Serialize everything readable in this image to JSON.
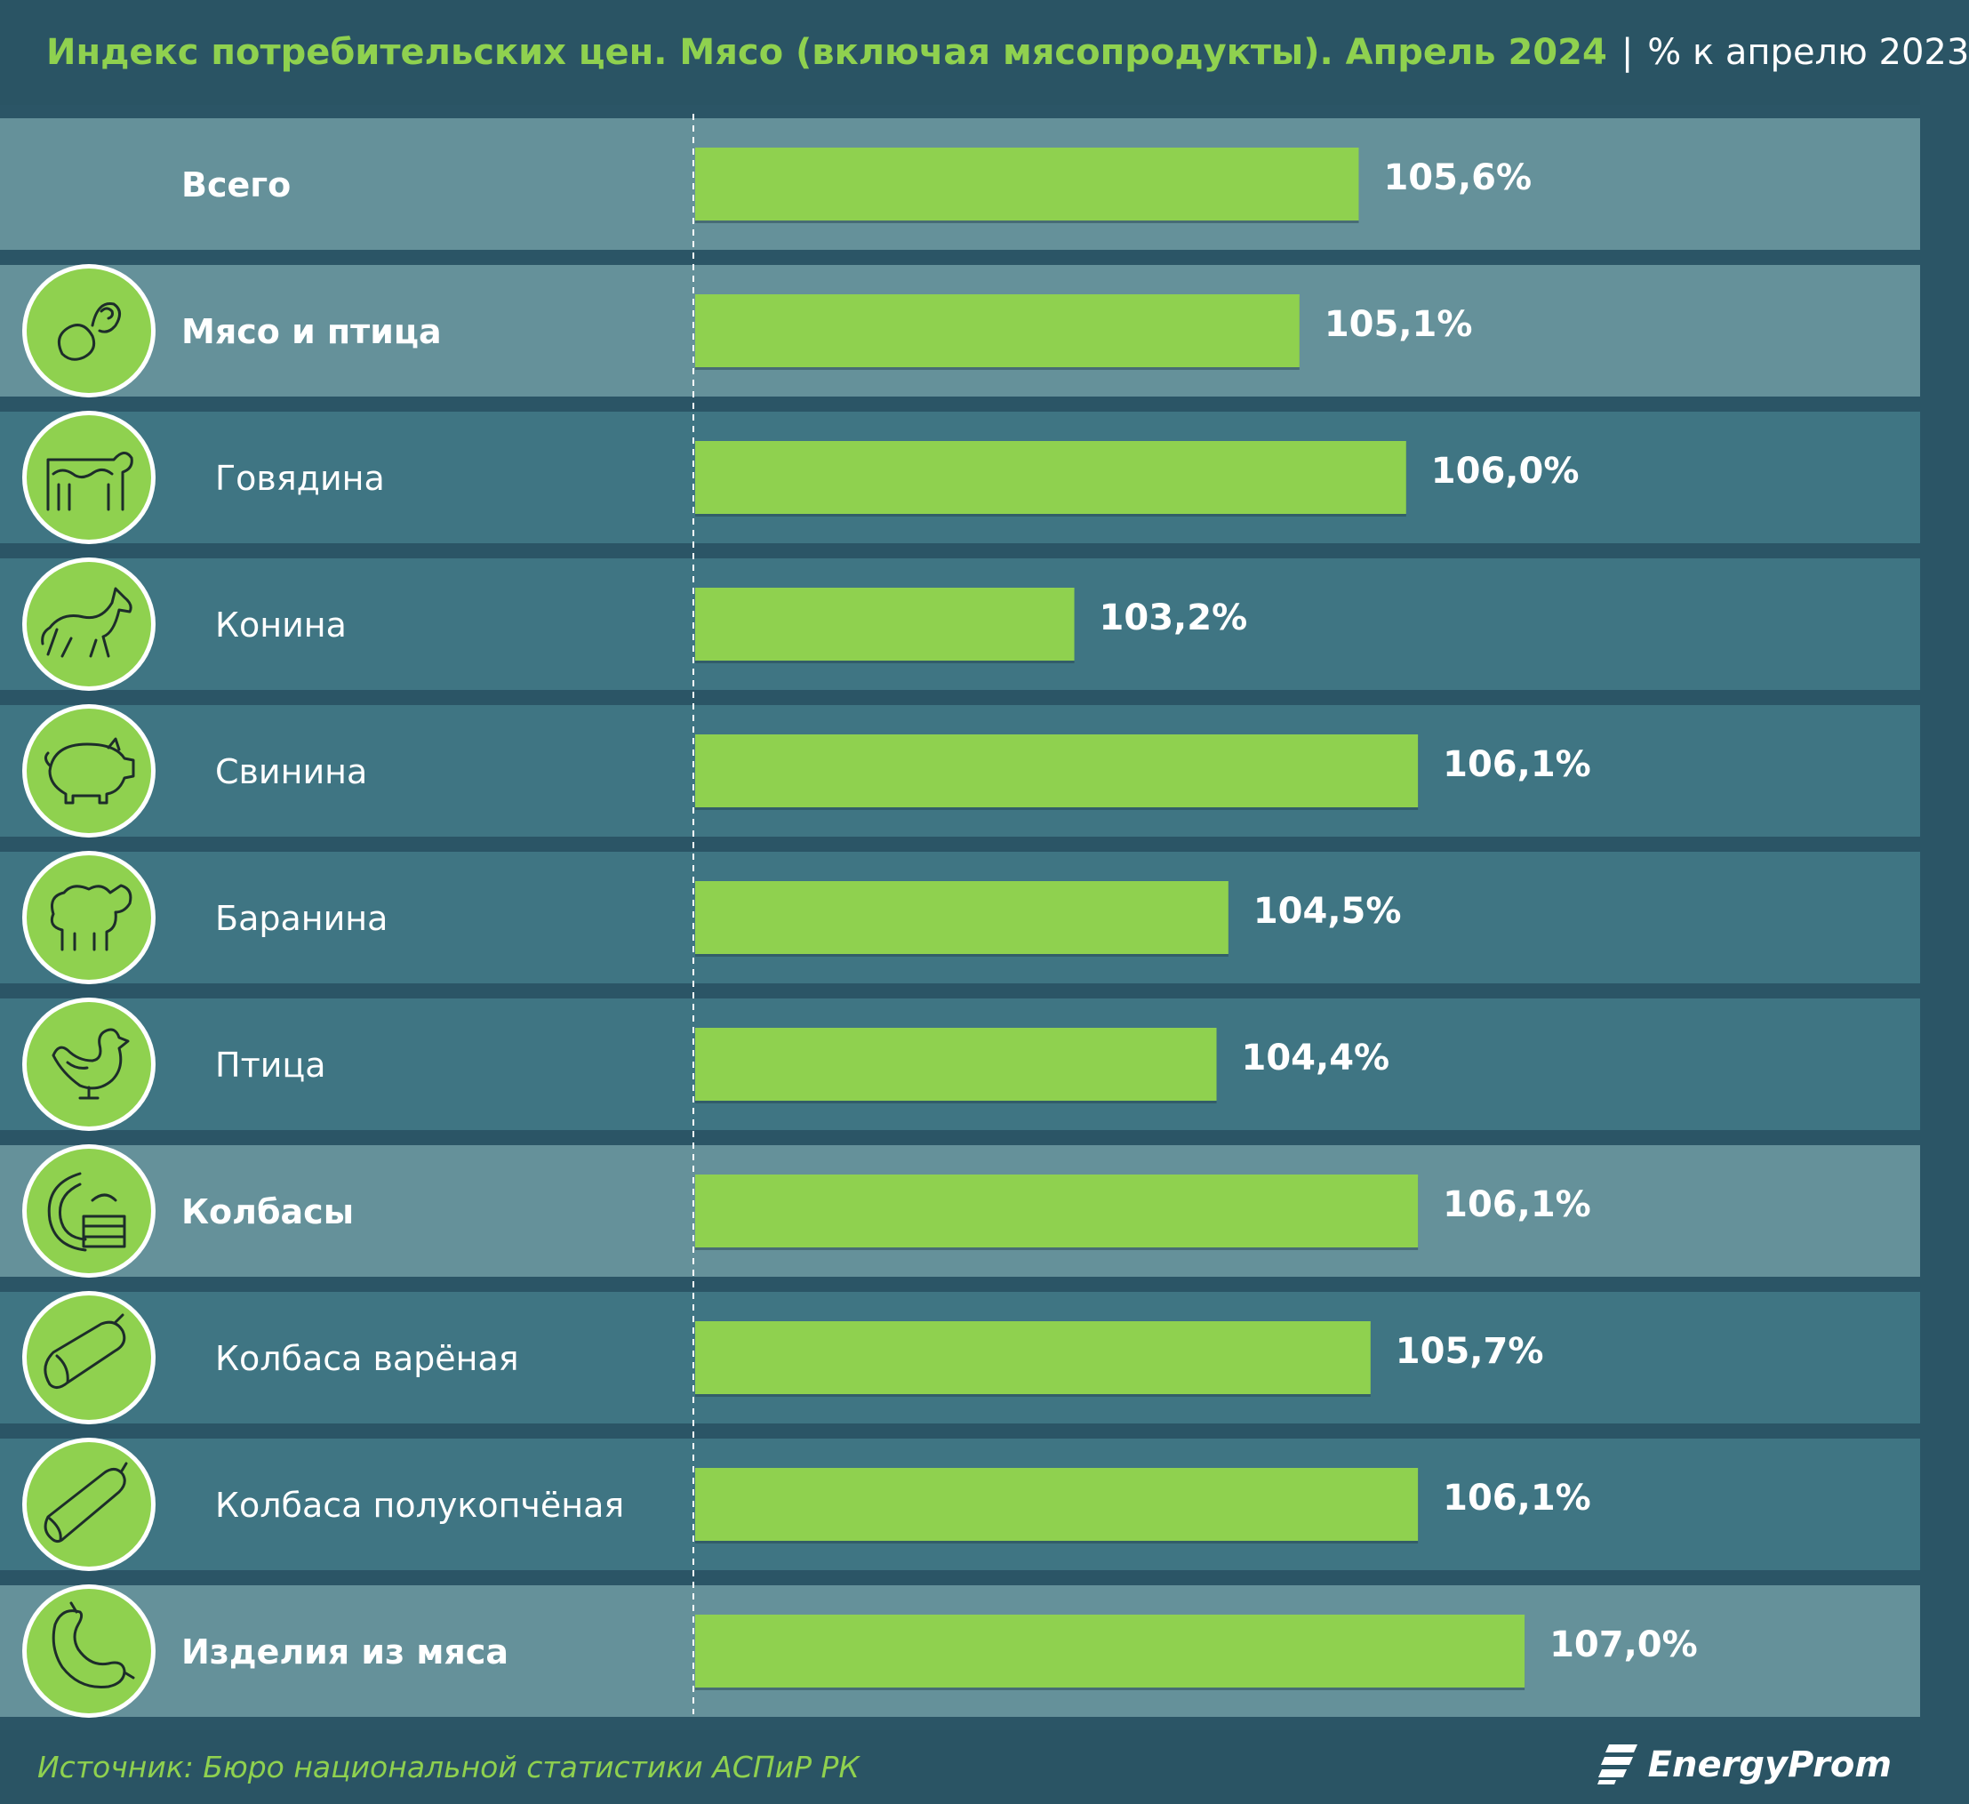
{
  "header": {
    "title": "Индекс потребительских цен. Мясо (включая мясопродукты). Апрель 2024",
    "separator": "|",
    "subtitle": "% к апрелю 2023"
  },
  "colors": {
    "bar": "#8fd14f",
    "row_highlight": "#65919a",
    "row_regular": "#3f7583",
    "row_gap": "#2b5566",
    "header_bg": "#2a5464",
    "icon_fill": "#8fd14f"
  },
  "chart_data": {
    "type": "bar",
    "orientation": "horizontal",
    "categories": [
      {
        "label": "Всего",
        "value": 105.6,
        "value_label": "105,6%",
        "highlight": true,
        "indent": false,
        "icon": ""
      },
      {
        "label": "Мясо и птица",
        "value": 105.1,
        "value_label": "105,1%",
        "highlight": true,
        "indent": false,
        "icon": "meat-icon"
      },
      {
        "label": "Говядина",
        "value": 106.0,
        "value_label": "106,0%",
        "highlight": false,
        "indent": true,
        "icon": "cow-icon"
      },
      {
        "label": "Конина",
        "value": 103.2,
        "value_label": "103,2%",
        "highlight": false,
        "indent": true,
        "icon": "horse-icon"
      },
      {
        "label": "Свинина",
        "value": 106.1,
        "value_label": "106,1%",
        "highlight": false,
        "indent": true,
        "icon": "pig-icon"
      },
      {
        "label": "Баранина",
        "value": 104.5,
        "value_label": "104,5%",
        "highlight": false,
        "indent": true,
        "icon": "sheep-icon"
      },
      {
        "label": "Птица",
        "value": 104.4,
        "value_label": "104,4%",
        "highlight": false,
        "indent": true,
        "icon": "chicken-icon"
      },
      {
        "label": "Колбасы",
        "value": 106.1,
        "value_label": "106,1%",
        "highlight": true,
        "indent": false,
        "icon": "sausages-icon"
      },
      {
        "label": "Колбаса варёная",
        "value": 105.7,
        "value_label": "105,7%",
        "highlight": false,
        "indent": true,
        "icon": "boiled-sausage-icon"
      },
      {
        "label": "Колбаса полукопчёная",
        "value": 106.1,
        "value_label": "106,1%",
        "highlight": false,
        "indent": true,
        "icon": "smoked-sausage-icon"
      },
      {
        "label": "Изделия из мяса",
        "value": 107.0,
        "value_label": "107,0%",
        "highlight": true,
        "indent": false,
        "icon": "meat-products-icon"
      }
    ],
    "baseline": 100,
    "grid": false,
    "legend": "none"
  },
  "footer": {
    "source": "Источник: Бюро национальной статистики АСПиР РК",
    "brand": "EnergyProm"
  }
}
